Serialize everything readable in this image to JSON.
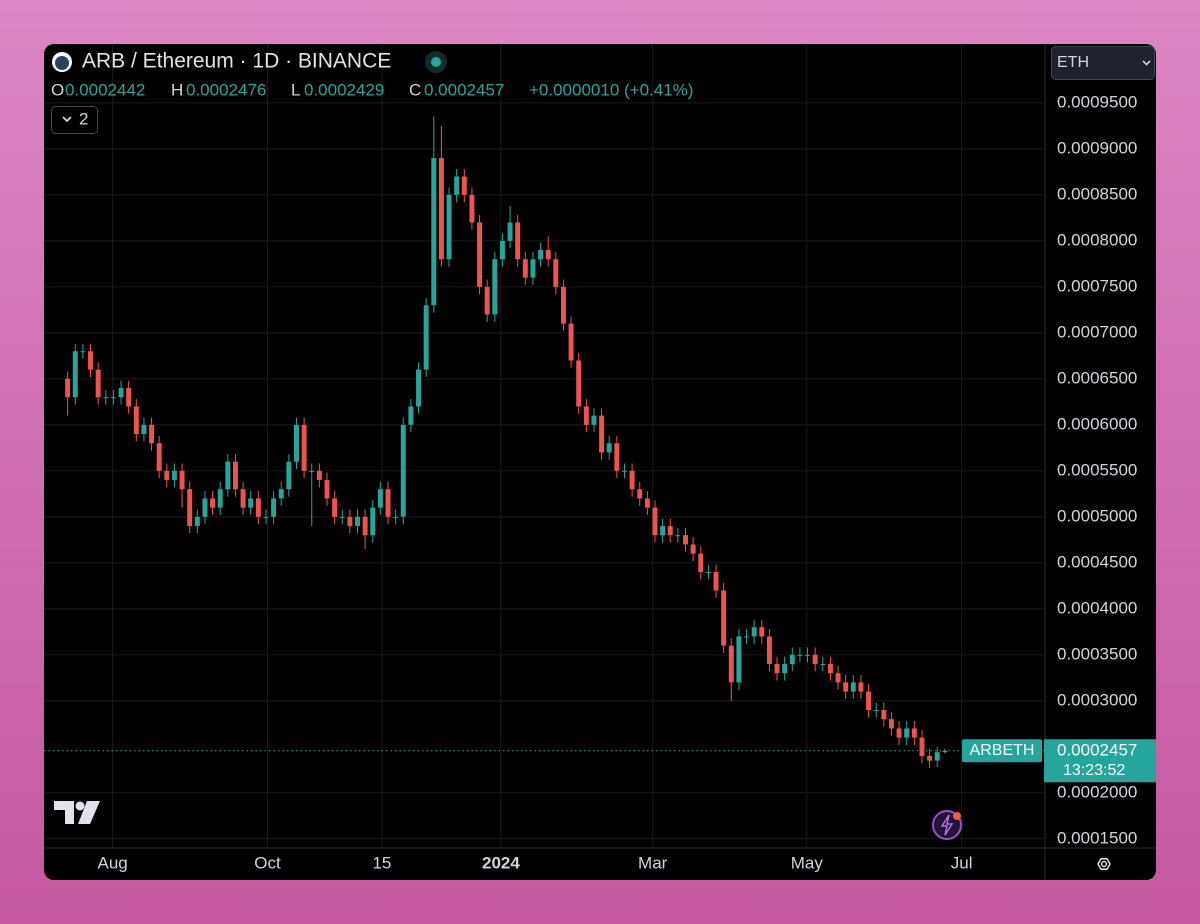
{
  "chart_data": {
    "type": "candlestick",
    "title": "ARB / Ethereum · 1D · BINANCE",
    "ohlc_letters": [
      "O",
      "H",
      "L",
      "C"
    ],
    "change": "+0.0000010 (+0.41%)",
    "indicator_count": 2,
    "currency": "ETH",
    "symbol": "ARBETH",
    "countdown": "13:23:52",
    "up_color": "#26a69a",
    "down_color": "#ef5350",
    "grid": true,
    "ylim": [
      0.00014,
      0.001014
    ],
    "yticks": [
      {
        "value": 0.00015,
        "label": "0.0001500"
      },
      {
        "value": 0.0002,
        "label": "0.0002000"
      },
      {
        "value": 0.0003,
        "label": "0.0003000"
      },
      {
        "value": 0.00035,
        "label": "0.0003500"
      },
      {
        "value": 0.0004,
        "label": "0.0004000"
      },
      {
        "value": 0.00045,
        "label": "0.0004500"
      },
      {
        "value": 0.0005,
        "label": "0.0005000"
      },
      {
        "value": 0.00055,
        "label": "0.0005500"
      },
      {
        "value": 0.0006,
        "label": "0.0006000"
      },
      {
        "value": 0.00065,
        "label": "0.0006500"
      },
      {
        "value": 0.0007,
        "label": "0.0007000"
      },
      {
        "value": 0.00075,
        "label": "0.0007500"
      },
      {
        "value": 0.0008,
        "label": "0.0008000"
      },
      {
        "value": 0.00085,
        "label": "0.0008500"
      },
      {
        "value": 0.0009,
        "label": "0.0009000"
      },
      {
        "value": 0.00095,
        "label": "0.0009500"
      }
    ],
    "xlim": [
      -3.1,
      128
    ],
    "xticks": [
      {
        "value": 5.9,
        "label": "Aug"
      },
      {
        "value": 26.2,
        "label": "Oct"
      },
      {
        "value": 41.2,
        "label": "15"
      },
      {
        "value": 56.8,
        "label": "2024"
      },
      {
        "value": 76.7,
        "label": "Mar"
      },
      {
        "value": 96.9,
        "label": "May"
      },
      {
        "value": 117.2,
        "label": "Jul"
      }
    ],
    "open": [
      0.00065,
      0.00063,
      0.00068,
      0.00068,
      0.00066,
      0.00063,
      0.00063,
      0.00063,
      0.00064,
      0.00062,
      0.00059,
      0.0006,
      0.00058,
      0.00055,
      0.00054,
      0.00055,
      0.00053,
      0.00049,
      0.0005,
      0.00052,
      0.00051,
      0.00053,
      0.00056,
      0.00053,
      0.00051,
      0.00052,
      0.0005,
      0.0005,
      0.00052,
      0.00053,
      0.00056,
      0.0006,
      0.00055,
      0.00055,
      0.00054,
      0.00052,
      0.0005,
      0.0005,
      0.00049,
      0.0005,
      0.00048,
      0.00051,
      0.00053,
      0.0005,
      0.0005,
      0.0006,
      0.00062,
      0.00066,
      0.00073,
      0.00089,
      0.00078,
      0.00085,
      0.00087,
      0.00085,
      0.00082,
      0.00075,
      0.00072,
      0.00078,
      0.0008,
      0.00082,
      0.00078,
      0.00076,
      0.00078,
      0.00079,
      0.00078,
      0.00075,
      0.00071,
      0.00067,
      0.00062,
      0.0006,
      0.00061,
      0.00057,
      0.00058,
      0.00055,
      0.00055,
      0.00053,
      0.00052,
      0.00051,
      0.00048,
      0.00049,
      0.00048,
      0.00048,
      0.00047,
      0.00046,
      0.00044,
      0.00044,
      0.00042,
      0.00036,
      0.00032,
      0.00037,
      0.00037,
      0.00038,
      0.00037,
      0.00034,
      0.00033,
      0.00034,
      0.00035,
      0.00035,
      0.00035,
      0.00034,
      0.00034,
      0.00033,
      0.00032,
      0.00031,
      0.00032,
      0.00031,
      0.00029,
      0.00029,
      0.00028,
      0.00027,
      0.00026,
      0.00027,
      0.00026,
      0.00024,
      0.000235,
      0.0002442
    ],
    "high": [
      0.000658,
      0.000688,
      0.000688,
      0.000688,
      0.000668,
      0.000638,
      0.000638,
      0.000648,
      0.000648,
      0.000628,
      0.000608,
      0.000608,
      0.000588,
      0.000558,
      0.000558,
      0.000558,
      0.000538,
      0.000508,
      0.000528,
      0.000528,
      0.000538,
      0.000568,
      0.000568,
      0.000538,
      0.000528,
      0.000528,
      0.000508,
      0.000528,
      0.000538,
      0.000568,
      0.000608,
      0.000608,
      0.000558,
      0.000558,
      0.000548,
      0.000528,
      0.000508,
      0.000508,
      0.000508,
      0.000508,
      0.000518,
      0.000538,
      0.000538,
      0.000508,
      0.000608,
      0.000628,
      0.000668,
      0.000738,
      0.000935,
      0.000925,
      0.000858,
      0.000878,
      0.000878,
      0.000858,
      0.000828,
      0.000758,
      0.000788,
      0.000808,
      0.000838,
      0.000828,
      0.000788,
      0.000788,
      0.000798,
      0.000805,
      0.000788,
      0.000758,
      0.000718,
      0.000678,
      0.000628,
      0.000618,
      0.000618,
      0.000588,
      0.000588,
      0.000558,
      0.000558,
      0.000538,
      0.000528,
      0.000518,
      0.000498,
      0.000498,
      0.000488,
      0.000488,
      0.000478,
      0.000468,
      0.000448,
      0.000448,
      0.000428,
      0.000368,
      0.000378,
      0.000378,
      0.000388,
      0.000388,
      0.000378,
      0.000348,
      0.000348,
      0.000358,
      0.000358,
      0.000358,
      0.000358,
      0.000348,
      0.000348,
      0.000338,
      0.000328,
      0.000328,
      0.000328,
      0.000318,
      0.000298,
      0.000298,
      0.000288,
      0.000278,
      0.000278,
      0.000278,
      0.000268,
      0.000248,
      0.00025,
      0.0002476
    ],
    "low": [
      0.00061,
      0.000622,
      0.000672,
      0.000652,
      0.000622,
      0.000622,
      0.000622,
      0.000622,
      0.000612,
      0.000582,
      0.000582,
      0.000572,
      0.000542,
      0.000532,
      0.000532,
      0.00051,
      0.000482,
      0.000482,
      0.000492,
      0.000502,
      0.000502,
      0.000522,
      0.000522,
      0.000502,
      0.000502,
      0.000492,
      0.000492,
      0.000492,
      0.000512,
      0.000522,
      0.000552,
      0.000542,
      0.00049,
      0.000532,
      0.000512,
      0.000492,
      0.000492,
      0.000482,
      0.000482,
      0.000465,
      0.000472,
      0.000502,
      0.000492,
      0.000492,
      0.000492,
      0.000592,
      0.000612,
      0.000652,
      0.000722,
      0.000772,
      0.000772,
      0.000842,
      0.000842,
      0.000812,
      0.000742,
      0.000712,
      0.000712,
      0.000772,
      0.000792,
      0.000772,
      0.000752,
      0.000752,
      0.000772,
      0.000772,
      0.000742,
      0.000702,
      0.000662,
      0.000612,
      0.000592,
      0.000592,
      0.000562,
      0.000562,
      0.000542,
      0.000542,
      0.000522,
      0.000512,
      0.000502,
      0.000472,
      0.000472,
      0.000472,
      0.000472,
      0.000462,
      0.000452,
      0.000432,
      0.000432,
      0.000412,
      0.000352,
      0.0003,
      0.000312,
      0.000362,
      0.000362,
      0.000362,
      0.000332,
      0.000322,
      0.000322,
      0.000332,
      0.000342,
      0.000342,
      0.000332,
      0.000332,
      0.000322,
      0.000312,
      0.000302,
      0.000302,
      0.000302,
      0.000282,
      0.000282,
      0.000272,
      0.000262,
      0.000252,
      0.000252,
      0.000252,
      0.000232,
      0.000227,
      0.000228,
      0.0002429
    ],
    "close": [
      0.00063,
      0.00068,
      0.00068,
      0.00066,
      0.00063,
      0.00063,
      0.00063,
      0.00064,
      0.00062,
      0.00059,
      0.0006,
      0.00058,
      0.00055,
      0.00054,
      0.00055,
      0.00053,
      0.00049,
      0.0005,
      0.00052,
      0.00051,
      0.00053,
      0.00056,
      0.00053,
      0.00051,
      0.00052,
      0.0005,
      0.0005,
      0.00052,
      0.00053,
      0.00056,
      0.0006,
      0.00055,
      0.00055,
      0.00054,
      0.00052,
      0.0005,
      0.0005,
      0.00049,
      0.0005,
      0.00048,
      0.00051,
      0.00053,
      0.0005,
      0.0005,
      0.0006,
      0.00062,
      0.00066,
      0.00073,
      0.00089,
      0.00078,
      0.00085,
      0.00087,
      0.00085,
      0.00082,
      0.00075,
      0.00072,
      0.00078,
      0.0008,
      0.00082,
      0.00078,
      0.00076,
      0.00078,
      0.00079,
      0.00078,
      0.00075,
      0.00071,
      0.00067,
      0.00062,
      0.0006,
      0.00061,
      0.00057,
      0.00058,
      0.00055,
      0.00055,
      0.00053,
      0.00052,
      0.00051,
      0.00048,
      0.00049,
      0.00048,
      0.00048,
      0.00047,
      0.00046,
      0.00044,
      0.00044,
      0.00042,
      0.00036,
      0.00032,
      0.00037,
      0.00037,
      0.00038,
      0.00037,
      0.00034,
      0.00033,
      0.00034,
      0.00035,
      0.00035,
      0.00035,
      0.00034,
      0.00034,
      0.00033,
      0.00032,
      0.00031,
      0.00032,
      0.00031,
      0.00029,
      0.00029,
      0.00028,
      0.00027,
      0.00026,
      0.00027,
      0.00026,
      0.00024,
      0.000235,
      0.0002442,
      0.0002457
    ]
  }
}
